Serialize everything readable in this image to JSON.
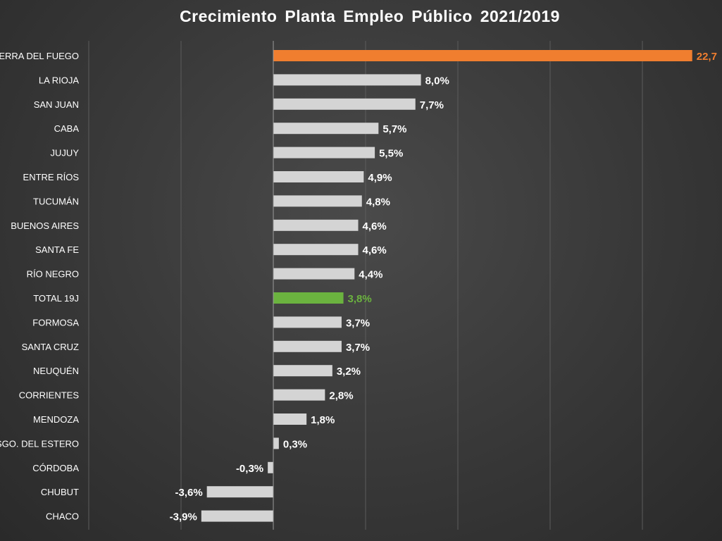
{
  "colors": {
    "default_bar": "#d4d4d4",
    "highlight_top": "#f07e2f",
    "highlight_total": "#6bb33f",
    "default_label": "#ffffff",
    "gridline": "#5c5c5c",
    "zero_axis": "#9a9a9a"
  },
  "chart_data": {
    "type": "bar",
    "orientation": "horizontal",
    "title": "Crecimiento Planta Empleo Público 2021/2019",
    "xlabel": "",
    "ylabel": "",
    "xlim": [
      -10,
      35
    ],
    "grid": true,
    "legend": "none",
    "categories": [
      "TIERRA DEL FUEGO",
      "LA RIOJA",
      "SAN JUAN",
      "CABA",
      "JUJUY",
      "ENTRE RÍOS",
      "TUCUMÁN",
      "BUENOS AIRES",
      "SANTA FE",
      "RÍO NEGRO",
      "TOTAL 19J",
      "FORMOSA",
      "SANTA CRUZ",
      "NEUQUÉN",
      "CORRIENTES",
      "MENDOZA",
      "SGO. DEL ESTERO",
      "CÓRDOBA",
      "CHUBUT",
      "CHACO"
    ],
    "values": [
      22.7,
      8.0,
      7.7,
      5.7,
      5.5,
      4.9,
      4.8,
      4.6,
      4.6,
      4.4,
      3.8,
      3.7,
      3.7,
      3.2,
      2.8,
      1.8,
      0.3,
      -0.3,
      -3.6,
      -3.9
    ],
    "data_labels": [
      "22,7",
      "8,0%",
      "7,7%",
      "5,7%",
      "5,5%",
      "4,9%",
      "4,8%",
      "4,6%",
      "4,6%",
      "4,4%",
      "3,8%",
      "3,7%",
      "3,7%",
      "3,2%",
      "2,8%",
      "1,8%",
      "0,3%",
      "-0,3%",
      "-3,6%",
      "-3,9%"
    ],
    "highlights": {
      "TIERRA DEL FUEGO": "highlight_top",
      "TOTAL 19J": "highlight_total"
    }
  }
}
